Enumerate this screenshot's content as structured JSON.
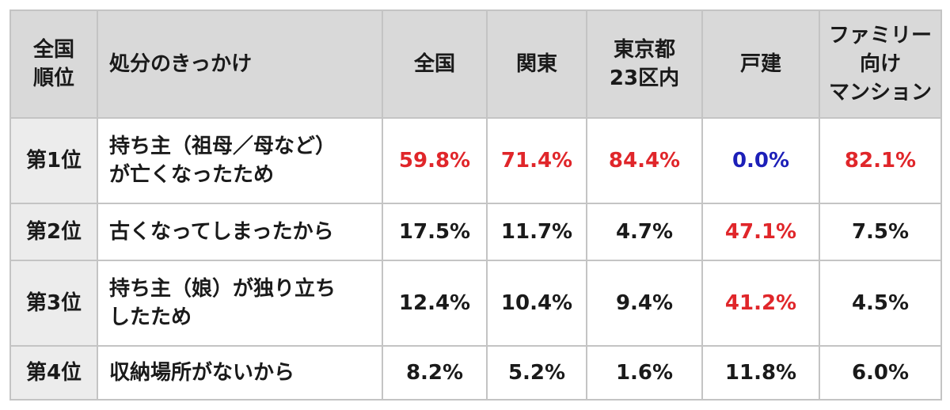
{
  "table": {
    "headers": {
      "rank": "全国\n順位",
      "reason": "処分のきっかけ",
      "nationwide": "全国",
      "kanto": "関東",
      "tokyo23": "東京都\n23区内",
      "detached": "戸建",
      "family_mansion": "ファミリー\n向け\nマンション"
    },
    "rows": [
      {
        "rank": "第1位",
        "reason": "持ち主（祖母／母など）\nが亡くなったため",
        "nationwide": "59.8%",
        "kanto": "71.4%",
        "tokyo23": "84.4%",
        "detached": "0.0%",
        "family_mansion": "82.1%"
      },
      {
        "rank": "第2位",
        "reason": "古くなってしまったから",
        "nationwide": "17.5%",
        "kanto": "11.7%",
        "tokyo23": "4.7%",
        "detached": "47.1%",
        "family_mansion": "7.5%"
      },
      {
        "rank": "第3位",
        "reason": "持ち主（娘）が独り立ち\nしたため",
        "nationwide": "12.4%",
        "kanto": "10.4%",
        "tokyo23": "9.4%",
        "detached": "41.2%",
        "family_mansion": "4.5%"
      },
      {
        "rank": "第4位",
        "reason": "収納場所がないから",
        "nationwide": "8.2%",
        "kanto": "5.2%",
        "tokyo23": "1.6%",
        "detached": "11.8%",
        "family_mansion": "6.0%"
      }
    ]
  },
  "colors": {
    "highlight_red": "#e0262a",
    "highlight_blue": "#1c1fb8",
    "header_bg": "#d9d9d9",
    "rank_bg": "#ececec",
    "border": "#c4c4c4"
  }
}
